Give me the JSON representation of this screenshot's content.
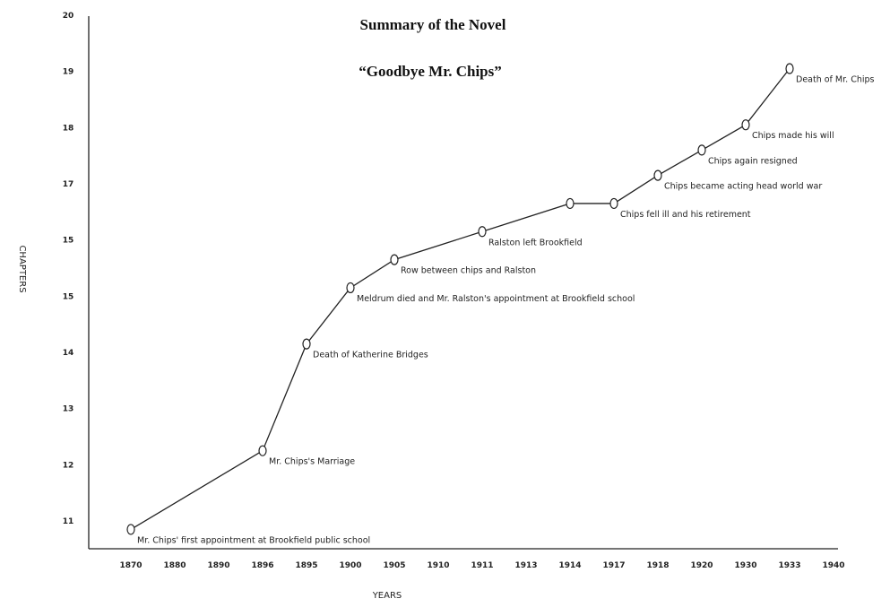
{
  "chart_data": {
    "type": "line",
    "title": "Summary of the Novel",
    "subtitle": "“Goodbye Mr. Chips”",
    "xlabel": "YEARS",
    "ylabel": "CHAPTERS",
    "x_ticks": [
      "1870",
      "1880",
      "1890",
      "1896",
      "1895",
      "1900",
      "1905",
      "1910",
      "1911",
      "1913",
      "1914",
      "1917",
      "1918",
      "1920",
      "1930",
      "1933",
      "1940"
    ],
    "y_ticks": [
      "11",
      "12",
      "13",
      "14",
      "15",
      "15",
      "17",
      "18",
      "19",
      "20"
    ],
    "ylim": [
      10.5,
      20
    ],
    "grid": false,
    "legend": "none",
    "points": [
      {
        "x": "1870",
        "y": 10.85,
        "label": "Mr. Chips' first appointment at Brookfield public school"
      },
      {
        "x": "1896",
        "y": 12.25,
        "label": "Mr. Chips's Marriage"
      },
      {
        "x": "1895",
        "y": 14.15,
        "label": "Death of Katherine Bridges"
      },
      {
        "x": "1900",
        "y": 15.15,
        "label": "Meldrum died and Mr. Ralston's appointment at Brookfield school"
      },
      {
        "x": "1905",
        "y": 15.65,
        "label": "Row between chips and Ralston"
      },
      {
        "x": "1911",
        "y": 16.15,
        "label": "Ralston left Brookfield"
      },
      {
        "x": "1914",
        "y": 16.65,
        "label": ""
      },
      {
        "x": "1917",
        "y": 16.65,
        "label": "Chips fell ill and his retirement"
      },
      {
        "x": "1918",
        "y": 17.15,
        "label": "Chips became acting head world war"
      },
      {
        "x": "1920",
        "y": 17.6,
        "label": "Chips again resigned"
      },
      {
        "x": "1930",
        "y": 18.05,
        "label": "Chips made his will"
      },
      {
        "x": "1933",
        "y": 19.05,
        "label": "Death of Mr. Chips"
      }
    ]
  }
}
